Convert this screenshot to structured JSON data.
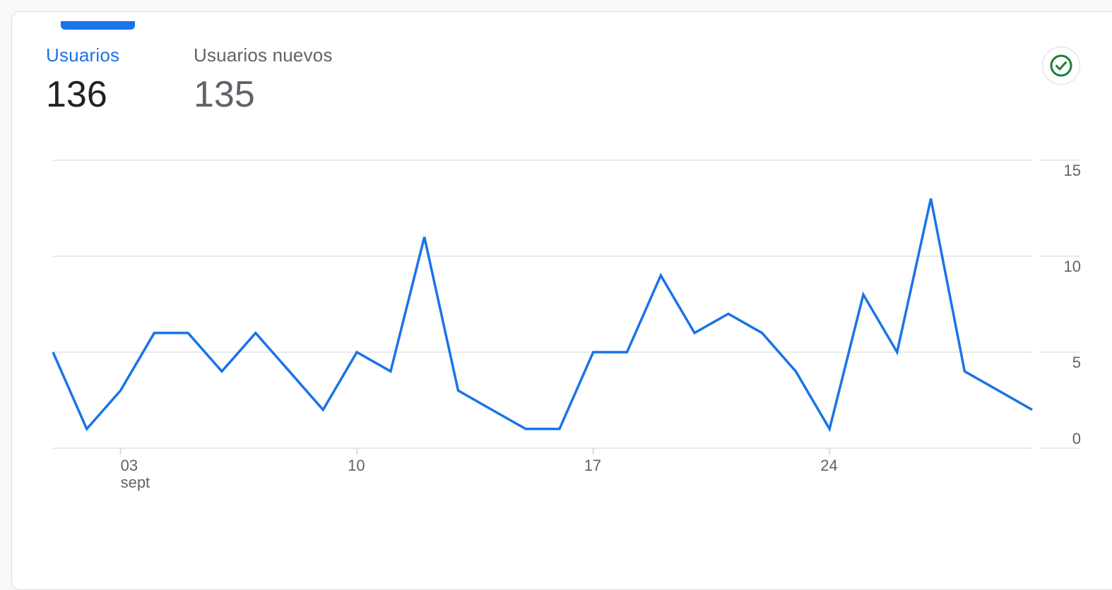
{
  "metrics": [
    {
      "label": "Usuarios",
      "value": "136",
      "active": true
    },
    {
      "label": "Usuarios nuevos",
      "value": "135",
      "active": false
    }
  ],
  "status": {
    "icon": "check-circle-icon",
    "color": "#188038"
  },
  "colors": {
    "accent": "#1a73e8",
    "grid": "#e8eaed",
    "text": "#5f6368"
  },
  "chart_data": {
    "type": "line",
    "x": [
      "01",
      "02",
      "03",
      "04",
      "05",
      "06",
      "07",
      "08",
      "09",
      "10",
      "11",
      "12",
      "13",
      "14",
      "15",
      "16",
      "17",
      "18",
      "19",
      "20",
      "21",
      "22",
      "23",
      "24",
      "25",
      "26",
      "27",
      "28",
      "29",
      "30"
    ],
    "series": [
      {
        "values": [
          5,
          1,
          3,
          6,
          6,
          4,
          6,
          4,
          2,
          5,
          4,
          11,
          3,
          2,
          1,
          1,
          5,
          5,
          9,
          6,
          7,
          6,
          4,
          1,
          8,
          5,
          13,
          4,
          3,
          2
        ]
      }
    ],
    "x_ticks": [
      {
        "x": "03",
        "label": "03",
        "sub": "sept"
      },
      {
        "x": "10",
        "label": "10",
        "sub": ""
      },
      {
        "x": "17",
        "label": "17",
        "sub": ""
      },
      {
        "x": "24",
        "label": "24",
        "sub": ""
      }
    ],
    "y_ticks": [
      0,
      5,
      10,
      15
    ],
    "ylim": [
      0,
      15
    ],
    "grid": true
  }
}
